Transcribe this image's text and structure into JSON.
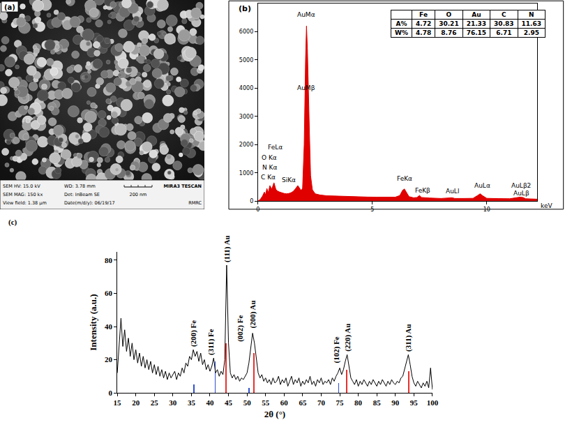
{
  "chart_data": [
    {
      "type": "image",
      "panel": "(a)",
      "info": [
        [
          "SEM HV: 15.0 kV",
          "SEM MAG: 150 kx",
          "View field: 1.38 µm"
        ],
        [
          "WD: 3.78 mm",
          "Det: InBeam SE",
          "Date(m/d/y): 06/19/17"
        ]
      ],
      "scale_bar": "200 nm",
      "brand": "MIRA3 TESCAN",
      "lab": "RMRC"
    },
    {
      "type": "area",
      "panel": "(b)",
      "color": "#e00000",
      "grid": false,
      "x": [
        0,
        0.1,
        0.2,
        0.28,
        0.33,
        0.39,
        0.45,
        0.52,
        0.6,
        0.7,
        0.78,
        0.85,
        0.95,
        1.05,
        1.15,
        1.25,
        1.35,
        1.45,
        1.55,
        1.65,
        1.74,
        1.8,
        1.88,
        1.95,
        2.02,
        2.08,
        2.12,
        2.16,
        2.2,
        2.25,
        2.3,
        2.38,
        2.5,
        2.7,
        3,
        3.3,
        3.6,
        4,
        4.4,
        4.8,
        5.2,
        5.6,
        6,
        6.2,
        6.32,
        6.4,
        6.48,
        6.6,
        6.8,
        6.95,
        7.06,
        7.15,
        7.5,
        8,
        8.49,
        8.6,
        9,
        9.4,
        9.6,
        9.71,
        9.82,
        10,
        10.5,
        11,
        11.44,
        11.58,
        11.7,
        12,
        12.2
      ],
      "values": [
        0,
        60,
        180,
        320,
        220,
        450,
        300,
        550,
        420,
        650,
        420,
        360,
        320,
        290,
        270,
        260,
        270,
        300,
        350,
        450,
        550,
        480,
        380,
        450,
        2000,
        5000,
        6200,
        5400,
        4300,
        2400,
        900,
        400,
        260,
        220,
        190,
        180,
        170,
        160,
        150,
        145,
        140,
        135,
        140,
        200,
        380,
        430,
        320,
        160,
        120,
        130,
        200,
        130,
        110,
        95,
        120,
        95,
        95,
        100,
        200,
        260,
        190,
        100,
        90,
        85,
        140,
        130,
        85,
        75,
        70
      ],
      "xlim": [
        0,
        12.2
      ],
      "xticks": [
        0,
        5,
        10
      ],
      "ylim": [
        0,
        7000
      ],
      "yticks": [
        0,
        1000,
        2000,
        3000,
        4000,
        5000,
        6000
      ],
      "x_label": "keV",
      "annotations": [
        {
          "text": "AuMα",
          "x": 2.12,
          "y": 6600
        },
        {
          "text": "AuMβ",
          "x": 2.12,
          "y": 4000
        },
        {
          "text": "FeLα",
          "x": 0.75,
          "y": 1900
        },
        {
          "text": "O Kα",
          "x": 0.5,
          "y": 1550
        },
        {
          "text": "N Kα",
          "x": 0.5,
          "y": 1200
        },
        {
          "text": "C Kα",
          "x": 0.45,
          "y": 850
        },
        {
          "text": "SiKα",
          "x": 1.35,
          "y": 750
        },
        {
          "text": "FeKα",
          "x": 6.4,
          "y": 800
        },
        {
          "text": "FeKβ",
          "x": 7.2,
          "y": 380
        },
        {
          "text": "AuLl",
          "x": 8.5,
          "y": 350
        },
        {
          "text": "AuLα",
          "x": 9.8,
          "y": 550
        },
        {
          "text": "AuLβ2",
          "x": 11.5,
          "y": 550
        },
        {
          "text": "AuLβ",
          "x": 11.5,
          "y": 270
        }
      ],
      "table": {
        "header": [
          "Fe",
          "O",
          "Au",
          "C",
          "N"
        ],
        "rows": [
          {
            "label": "A%",
            "values": [
              4.72,
              30.21,
              21.33,
              30.83,
              11.63
            ]
          },
          {
            "label": "W%",
            "values": [
              4.78,
              8.76,
              76.15,
              6.71,
              2.95
            ]
          }
        ]
      }
    },
    {
      "type": "line",
      "panel": "(c)",
      "grid": false,
      "x_label": "2θ (°)",
      "y_label": "Intensity (a.u.)",
      "xlim": [
        15,
        100
      ],
      "xticks": [
        15,
        20,
        25,
        30,
        35,
        40,
        45,
        50,
        55,
        60,
        65,
        70,
        75,
        80,
        85,
        90,
        95,
        100
      ],
      "ylim": [
        0,
        85
      ],
      "yticks": [
        0,
        20,
        40,
        60,
        80
      ],
      "series": [
        {
          "type": "line",
          "color": "#000000",
          "x": [
            15,
            15.5,
            16,
            16.5,
            17,
            17.5,
            18,
            18.5,
            19,
            19.5,
            20,
            20.5,
            21,
            21.5,
            22,
            22.5,
            23,
            23.5,
            24,
            24.5,
            25,
            25.5,
            26,
            26.5,
            27,
            27.5,
            28,
            28.5,
            29,
            29.5,
            30,
            30.5,
            31,
            31.5,
            32,
            32.5,
            33,
            33.5,
            34,
            34.5,
            35,
            35.5,
            36,
            36.5,
            37,
            37.5,
            38,
            38.5,
            39,
            39.5,
            40,
            40.5,
            41,
            41.5,
            42,
            42.5,
            43,
            43.5,
            44,
            44.5,
            45,
            45.5,
            46,
            46.5,
            47,
            47.5,
            48,
            48.5,
            49,
            49.5,
            50,
            50.5,
            51,
            51.5,
            52,
            52.5,
            53,
            53.5,
            54,
            54.5,
            55,
            55.5,
            56,
            56.5,
            57,
            57.5,
            58,
            58.5,
            59,
            59.5,
            60,
            60.5,
            61,
            61.5,
            62,
            62.5,
            63,
            63.5,
            64,
            64.5,
            65,
            65.5,
            66,
            66.5,
            67,
            67.5,
            68,
            68.5,
            69,
            69.5,
            70,
            70.5,
            71,
            71.5,
            72,
            72.5,
            73,
            73.5,
            74,
            74.5,
            75,
            75.5,
            76,
            76.5,
            77,
            77.5,
            78,
            78.5,
            79,
            79.5,
            80,
            80.5,
            81,
            81.5,
            82,
            82.5,
            83,
            83.5,
            84,
            84.5,
            85,
            85.5,
            86,
            86.5,
            87,
            87.5,
            88,
            88.5,
            89,
            89.5,
            90,
            90.5,
            91,
            91.5,
            92,
            92.5,
            93,
            93.5,
            94,
            94.5,
            95,
            95.5,
            96,
            96.5,
            97,
            97.5,
            98,
            98.5,
            99,
            99.5,
            100
          ],
          "values": [
            12,
            30,
            45,
            28,
            38,
            25,
            33,
            22,
            30,
            20,
            26,
            18,
            24,
            16,
            22,
            15,
            20,
            14,
            19,
            12,
            17,
            11,
            16,
            10,
            14,
            9,
            13,
            8,
            12,
            9,
            11,
            13,
            8,
            12,
            10,
            15,
            12,
            18,
            16,
            22,
            20,
            26,
            22,
            25,
            19,
            24,
            17,
            20,
            14,
            17,
            13,
            16,
            21,
            12,
            14,
            10,
            13,
            11,
            20,
            77,
            30,
            12,
            9,
            11,
            8,
            10,
            7,
            9,
            8,
            10,
            12,
            18,
            26,
            36,
            30,
            20,
            12,
            9,
            11,
            7,
            9,
            6,
            8,
            5,
            9,
            6,
            7,
            10,
            5,
            8,
            6,
            9,
            4,
            7,
            10,
            5,
            8,
            6,
            9,
            4,
            7,
            5,
            8,
            6,
            10,
            5,
            7,
            4,
            8,
            6,
            9,
            5,
            7,
            6,
            8,
            5,
            9,
            7,
            10,
            12,
            15,
            11,
            14,
            19,
            23,
            16,
            9,
            7,
            5,
            8,
            4,
            7,
            5,
            8,
            6,
            4,
            7,
            5,
            8,
            6,
            4,
            7,
            5,
            8,
            6,
            4,
            7,
            5,
            8,
            6,
            5,
            7,
            6,
            9,
            10,
            14,
            18,
            23,
            17,
            10,
            6,
            4,
            7,
            5,
            3,
            6,
            4,
            7,
            3,
            15,
            2
          ]
        },
        {
          "type": "bar",
          "color": "#e8302c",
          "x": [
            44.4,
            51.8,
            76.9,
            93.6
          ],
          "values": [
            30,
            24,
            14,
            13
          ]
        },
        {
          "type": "bar",
          "color": "#3050d0",
          "x": [
            35.6,
            41.4,
            50.6,
            74.7
          ],
          "values": [
            5,
            19,
            3,
            6
          ]
        }
      ],
      "annotations": [
        {
          "text": "(200) Fe",
          "x": 35.7,
          "y": 27
        },
        {
          "text": "(311) Fe",
          "x": 40.4,
          "y": 22
        },
        {
          "text": "(111) Au",
          "x": 44.5,
          "y": 78
        },
        {
          "text": "(002) Fe",
          "x": 48.3,
          "y": 30
        },
        {
          "text": "(200) Au",
          "x": 51.6,
          "y": 38
        },
        {
          "text": "(102) Fe",
          "x": 74.2,
          "y": 17
        },
        {
          "text": "(220) Au",
          "x": 77,
          "y": 24
        },
        {
          "text": "(311) Au",
          "x": 93.5,
          "y": 24
        }
      ]
    }
  ]
}
